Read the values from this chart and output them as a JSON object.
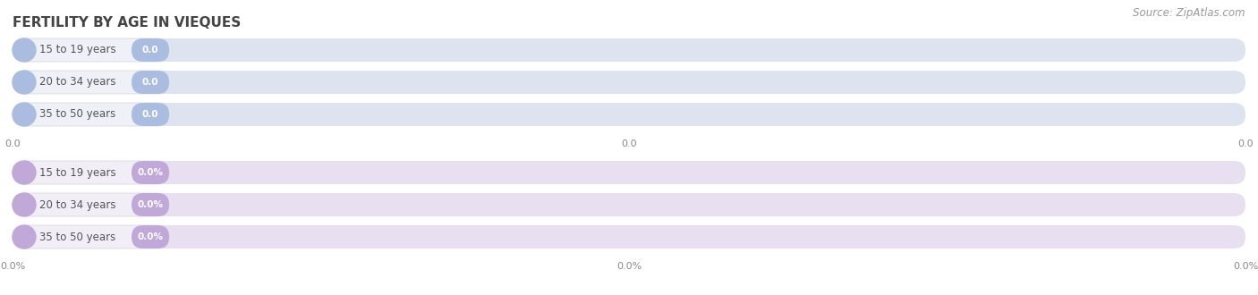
{
  "title": "FERTILITY BY AGE IN VIEQUES",
  "source": "Source: ZipAtlas.com",
  "top_section": {
    "categories": [
      "15 to 19 years",
      "20 to 34 years",
      "35 to 50 years"
    ],
    "values": [
      0.0,
      0.0,
      0.0
    ],
    "bar_bg_color": "#dde4f0",
    "label_pill_color": "#eef1f8",
    "circle_color": "#aabde0",
    "badge_color": "#aabde0",
    "x_tick_labels": [
      "0.0",
      "0.0",
      "0.0"
    ]
  },
  "bottom_section": {
    "categories": [
      "15 to 19 years",
      "20 to 34 years",
      "35 to 50 years"
    ],
    "values": [
      0.0,
      0.0,
      0.0
    ],
    "bar_bg_color": "#e8e0f0",
    "label_pill_color": "#f2eef8",
    "circle_color": "#c0a8d8",
    "badge_color": "#c0a8d8",
    "x_tick_labels": [
      "0.0%",
      "0.0%",
      "0.0%"
    ]
  },
  "bg_color": "#ffffff",
  "label_color": "#555555",
  "value_color": "#ffffff",
  "title_fontsize": 11,
  "label_fontsize": 8.5,
  "value_fontsize": 7.5,
  "source_fontsize": 8.5,
  "tick_fontsize": 8
}
